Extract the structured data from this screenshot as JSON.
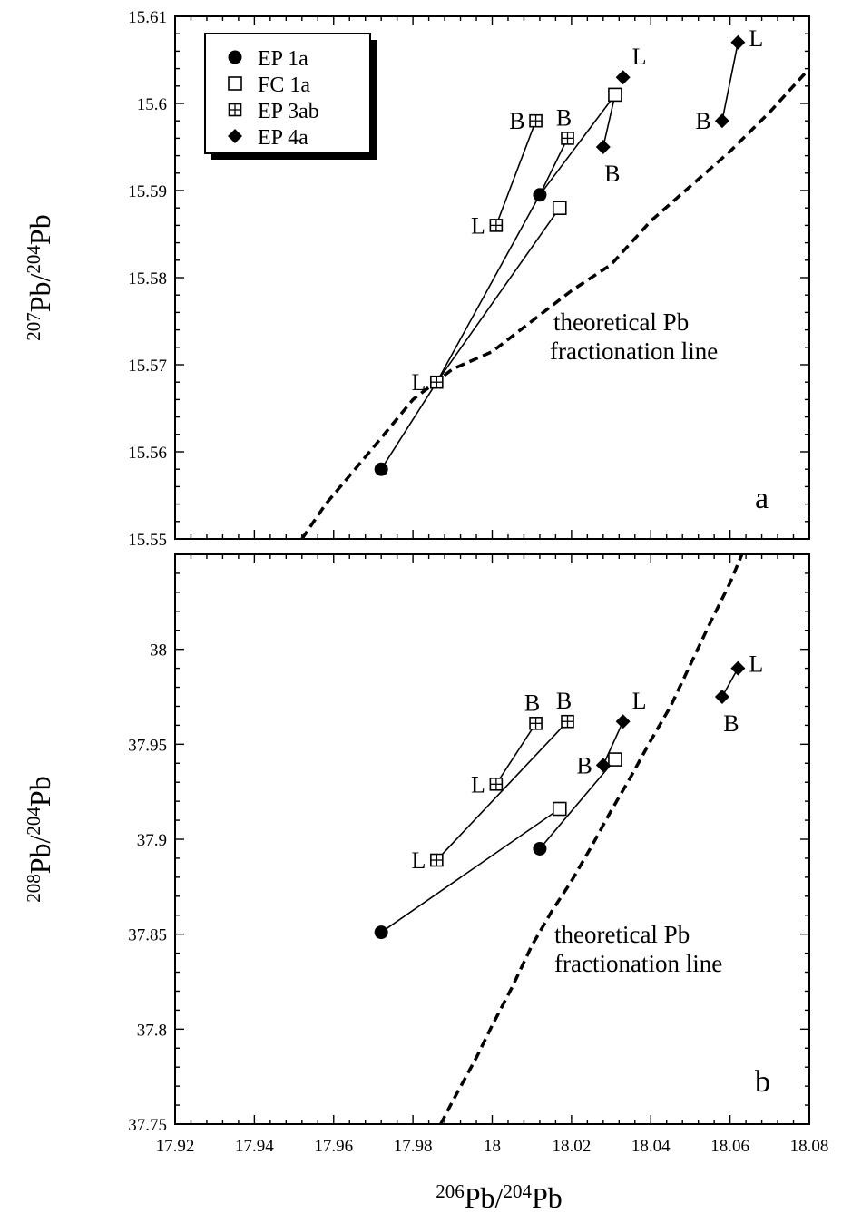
{
  "chart_data": [
    {
      "type": "scatter",
      "panel": "a",
      "xlabel": {
        "sup1": "206",
        "main1": "Pb/",
        "sup2": "204",
        "main2": "Pb"
      },
      "ylabel": {
        "sup1": "207",
        "main1": "Pb/",
        "sup2": "204",
        "main2": "Pb"
      },
      "xlim": [
        17.92,
        18.08
      ],
      "ylim": [
        15.55,
        15.61
      ],
      "xticks": [
        "17.92",
        "17.94",
        "17.96",
        "17.98",
        "18",
        "18.02",
        "18.04",
        "18.06",
        "18.08"
      ],
      "yticks": [
        "15.55",
        "15.56",
        "15.57",
        "15.58",
        "15.59",
        "15.6",
        "15.61"
      ],
      "legend": {
        "position": "top-left",
        "entries": [
          {
            "name": "EP 1a",
            "marker": "filled-circle"
          },
          {
            "name": "FC 1a",
            "marker": "open-square"
          },
          {
            "name": "EP 3ab",
            "marker": "crossed-square"
          },
          {
            "name": "EP 4a",
            "marker": "filled-diamond"
          }
        ]
      },
      "points": [
        {
          "series": "EP 1a",
          "x": 17.972,
          "y": 15.558,
          "label": ""
        },
        {
          "series": "EP 1a",
          "x": 18.012,
          "y": 15.5895,
          "label": ""
        },
        {
          "series": "FC 1a",
          "x": 18.017,
          "y": 15.588,
          "label": ""
        },
        {
          "series": "FC 1a",
          "x": 18.031,
          "y": 15.601,
          "label": ""
        },
        {
          "series": "EP 3ab",
          "x": 17.986,
          "y": 15.568,
          "label": "L",
          "label_side": "left"
        },
        {
          "series": "EP 3ab",
          "x": 18.019,
          "y": 15.596,
          "label": "B",
          "label_side": "above"
        },
        {
          "series": "EP 3ab",
          "x": 18.001,
          "y": 15.586,
          "label": "L",
          "label_side": "left"
        },
        {
          "series": "EP 3ab",
          "x": 18.011,
          "y": 15.598,
          "label": "B",
          "label_side": "left"
        },
        {
          "series": "EP 4a",
          "x": 18.028,
          "y": 15.595,
          "label": "B",
          "label_side": "below"
        },
        {
          "series": "EP 4a",
          "x": 18.033,
          "y": 15.603,
          "label": "L",
          "label_side": "upper-right"
        },
        {
          "series": "EP 4a",
          "x": 18.058,
          "y": 15.598,
          "label": "B",
          "label_side": "left"
        },
        {
          "series": "EP 4a",
          "x": 18.062,
          "y": 15.607,
          "label": "L",
          "label_side": "right"
        }
      ],
      "segments": [
        [
          [
            17.972,
            15.558
          ],
          [
            17.986,
            15.568
          ]
        ],
        [
          [
            17.986,
            15.568
          ],
          [
            18.012,
            15.5895
          ]
        ],
        [
          [
            18.012,
            15.5895
          ],
          [
            18.019,
            15.596
          ]
        ],
        [
          [
            18.012,
            15.5895
          ],
          [
            18.031,
            15.601
          ]
        ],
        [
          [
            17.986,
            15.568
          ],
          [
            18.017,
            15.588
          ]
        ],
        [
          [
            18.001,
            15.586
          ],
          [
            18.011,
            15.598
          ]
        ],
        [
          [
            18.031,
            15.601
          ],
          [
            18.028,
            15.595
          ]
        ],
        [
          [
            18.058,
            15.598
          ],
          [
            18.062,
            15.607
          ]
        ]
      ],
      "fractionation_line": {
        "style": "dashed",
        "points": [
          [
            17.952,
            15.55
          ],
          [
            17.958,
            15.554
          ],
          [
            17.97,
            15.5605
          ],
          [
            17.98,
            15.566
          ],
          [
            17.99,
            15.5695
          ],
          [
            18.0,
            15.5715
          ],
          [
            18.01,
            15.575
          ],
          [
            18.02,
            15.5785
          ],
          [
            18.03,
            15.5815
          ],
          [
            18.04,
            15.5865
          ],
          [
            18.05,
            15.5905
          ],
          [
            18.06,
            15.5945
          ],
          [
            18.07,
            15.599
          ],
          [
            18.08,
            15.604
          ]
        ]
      },
      "annotation": [
        "theoretical Pb",
        "fractionation line"
      ]
    },
    {
      "type": "scatter",
      "panel": "b",
      "xlabel": {
        "sup1": "206",
        "main1": "Pb/",
        "sup2": "204",
        "main2": "Pb"
      },
      "ylabel": {
        "sup1": "208",
        "main1": "Pb/",
        "sup2": "204",
        "main2": "Pb"
      },
      "xlim": [
        17.92,
        18.08
      ],
      "ylim": [
        37.75,
        38.05
      ],
      "xticks": [
        "17.92",
        "17.94",
        "17.96",
        "17.98",
        "18",
        "18.02",
        "18.04",
        "18.06",
        "18.08"
      ],
      "yticks": [
        "37.75",
        "37.8",
        "37.85",
        "37.9",
        "37.95",
        "38"
      ],
      "points": [
        {
          "series": "EP 1a",
          "x": 17.972,
          "y": 37.851,
          "label": ""
        },
        {
          "series": "EP 1a",
          "x": 18.012,
          "y": 37.895,
          "label": ""
        },
        {
          "series": "FC 1a",
          "x": 18.017,
          "y": 37.916,
          "label": ""
        },
        {
          "series": "FC 1a",
          "x": 18.031,
          "y": 37.942,
          "label": ""
        },
        {
          "series": "EP 3ab",
          "x": 17.986,
          "y": 37.889,
          "label": "L",
          "label_side": "left"
        },
        {
          "series": "EP 3ab",
          "x": 18.001,
          "y": 37.929,
          "label": "L",
          "label_side": "left"
        },
        {
          "series": "EP 3ab",
          "x": 18.011,
          "y": 37.961,
          "label": "B",
          "label_side": "above"
        },
        {
          "series": "EP 3ab",
          "x": 18.019,
          "y": 37.962,
          "label": "B",
          "label_side": "above"
        },
        {
          "series": "EP 4a",
          "x": 18.028,
          "y": 37.939,
          "label": "B",
          "label_side": "left"
        },
        {
          "series": "EP 4a",
          "x": 18.033,
          "y": 37.962,
          "label": "L",
          "label_side": "upper-right"
        },
        {
          "series": "EP 4a",
          "x": 18.058,
          "y": 37.975,
          "label": "B",
          "label_side": "below"
        },
        {
          "series": "EP 4a",
          "x": 18.062,
          "y": 37.99,
          "label": "L",
          "label_side": "right"
        }
      ],
      "segments": [
        [
          [
            17.972,
            37.851
          ],
          [
            18.017,
            37.916
          ]
        ],
        [
          [
            17.986,
            37.889
          ],
          [
            18.019,
            37.962
          ]
        ],
        [
          [
            18.001,
            37.929
          ],
          [
            18.011,
            37.961
          ]
        ],
        [
          [
            18.012,
            37.895
          ],
          [
            18.031,
            37.942
          ]
        ],
        [
          [
            18.028,
            37.939
          ],
          [
            18.033,
            37.962
          ]
        ],
        [
          [
            18.058,
            37.975
          ],
          [
            18.062,
            37.99
          ]
        ]
      ],
      "fractionation_line": {
        "style": "dashed",
        "points": [
          [
            17.987,
            37.75
          ],
          [
            17.99,
            37.762
          ],
          [
            17.996,
            37.785
          ],
          [
            18.0,
            37.802
          ],
          [
            18.005,
            37.822
          ],
          [
            18.01,
            37.844
          ],
          [
            18.015,
            37.862
          ],
          [
            18.02,
            37.878
          ],
          [
            18.025,
            37.896
          ],
          [
            18.03,
            37.915
          ],
          [
            18.035,
            37.933
          ],
          [
            18.04,
            37.952
          ],
          [
            18.045,
            37.97
          ],
          [
            18.05,
            37.992
          ],
          [
            18.055,
            38.014
          ],
          [
            18.06,
            38.035
          ],
          [
            18.063,
            38.05
          ]
        ]
      },
      "annotation": [
        "theoretical Pb",
        "fractionation line"
      ]
    }
  ]
}
